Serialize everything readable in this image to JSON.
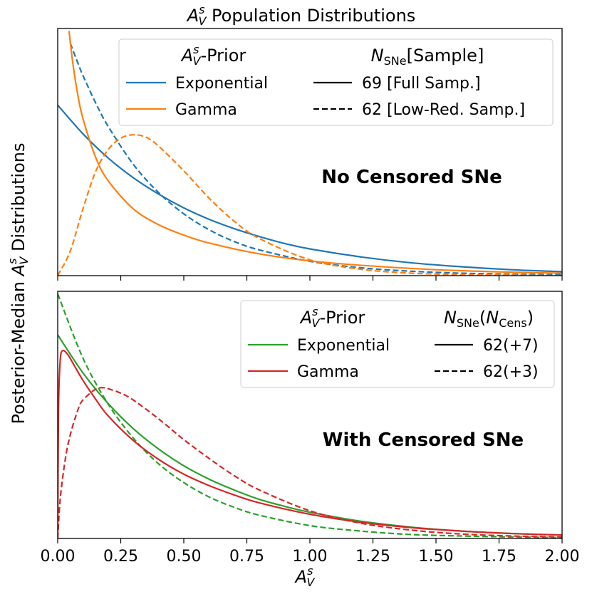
{
  "figure": {
    "title_base": "A",
    "title_sup": "s",
    "title_sub": "V",
    "title_rest": " Population Distributions",
    "ylabel_pre": "Posterior-Median ",
    "ylabel_base": "A",
    "ylabel_sup": "s",
    "ylabel_sub": "V",
    "ylabel_post": " Distributions",
    "xlabel_base": "A",
    "xlabel_sup": "s",
    "xlabel_sub": "V"
  },
  "colors": {
    "exponential_top": "#1f77b4",
    "gamma_top": "#ff7f0e",
    "exponential_bottom": "#2ca02c",
    "gamma_bottom": "#d62728"
  },
  "chart_data": [
    {
      "type": "line",
      "panel": "top",
      "annotation": "No Censored SNe",
      "xlim": [
        0.0,
        2.0
      ],
      "ylim": [
        0,
        5.0
      ],
      "ylabel_shows_ticks": false,
      "legend": {
        "placement": "top-right",
        "prior_header_base": "A",
        "prior_header_sup": "s",
        "prior_header_sub": "V",
        "prior_header_rest": "-Prior",
        "sample_header_base": "N",
        "sample_header_sub": "SNe",
        "sample_header_rest": "[Sample]",
        "priors": [
          {
            "label": "Exponential",
            "color": "#1f77b4"
          },
          {
            "label": "Gamma",
            "color": "#ff7f0e"
          }
        ],
        "samples": [
          {
            "label": "69 [Full Samp.]",
            "style": "solid"
          },
          {
            "label": "62 [Low-Red. Samp.]",
            "style": "dashed"
          }
        ]
      },
      "series": [
        {
          "name": "Exponential",
          "sample": "69 [Full Samp.]",
          "color": "#1f77b4",
          "style": "solid",
          "x": [
            0.0,
            0.1,
            0.2,
            0.3,
            0.4,
            0.5,
            0.6,
            0.7,
            0.8,
            0.9,
            1.0,
            1.2,
            1.4,
            1.6,
            1.8,
            2.0
          ],
          "y": [
            3.45,
            2.87,
            2.38,
            1.98,
            1.65,
            1.37,
            1.14,
            0.95,
            0.79,
            0.65,
            0.54,
            0.38,
            0.26,
            0.18,
            0.12,
            0.08
          ]
        },
        {
          "name": "Exponential",
          "sample": "62 [Low-Red. Samp.]",
          "color": "#1f77b4",
          "style": "dashed",
          "x": [
            0.05,
            0.08,
            0.1,
            0.15,
            0.2,
            0.3,
            0.4,
            0.5,
            0.6,
            0.7,
            0.8,
            1.0,
            1.2,
            1.4,
            1.6,
            1.8,
            2.0
          ],
          "y": [
            4.7,
            4.3,
            4.05,
            3.5,
            3.02,
            2.25,
            1.68,
            1.25,
            0.93,
            0.69,
            0.52,
            0.29,
            0.16,
            0.09,
            0.05,
            0.03,
            0.02
          ]
        },
        {
          "name": "Gamma",
          "sample": "69 [Full Samp.]",
          "color": "#ff7f0e",
          "style": "solid",
          "x": [
            0.045,
            0.06,
            0.08,
            0.1,
            0.15,
            0.2,
            0.3,
            0.4,
            0.5,
            0.6,
            0.8,
            1.0,
            1.2,
            1.5,
            1.8,
            2.0
          ],
          "y": [
            4.95,
            4.3,
            3.65,
            3.18,
            2.4,
            1.92,
            1.35,
            1.03,
            0.82,
            0.66,
            0.44,
            0.3,
            0.21,
            0.12,
            0.07,
            0.05
          ]
        },
        {
          "name": "Gamma",
          "sample": "62 [Low-Red. Samp.]",
          "color": "#ff7f0e",
          "style": "dashed",
          "x": [
            0.0,
            0.05,
            0.1,
            0.15,
            0.2,
            0.25,
            0.3,
            0.35,
            0.4,
            0.5,
            0.6,
            0.7,
            0.8,
            1.0,
            1.2,
            1.4,
            1.6,
            1.8,
            2.0
          ],
          "y": [
            0.0,
            0.5,
            1.35,
            2.1,
            2.55,
            2.78,
            2.85,
            2.8,
            2.62,
            2.12,
            1.57,
            1.1,
            0.75,
            0.32,
            0.13,
            0.05,
            0.02,
            0.01,
            0.0
          ]
        }
      ]
    },
    {
      "type": "line",
      "panel": "bottom",
      "annotation": "With Censored SNe",
      "xlim": [
        0.0,
        2.0
      ],
      "ylim": [
        0,
        5.0
      ],
      "xticks": [
        "0.00",
        "0.25",
        "0.50",
        "0.75",
        "1.00",
        "1.25",
        "1.50",
        "1.75",
        "2.00"
      ],
      "xtick_values": [
        0.0,
        0.25,
        0.5,
        0.75,
        1.0,
        1.25,
        1.5,
        1.75,
        2.0
      ],
      "legend": {
        "placement": "top-right",
        "prior_header_base": "A",
        "prior_header_sup": "s",
        "prior_header_sub": "V",
        "prior_header_rest": "-Prior",
        "sample_header_base": "N",
        "sample_header_sub": "SNe",
        "sample_header_mid": "(",
        "sample_header_base2": "N",
        "sample_header_sub2": "Cens",
        "sample_header_end": ")",
        "priors": [
          {
            "label": "Exponential",
            "color": "#2ca02c"
          },
          {
            "label": "Gamma",
            "color": "#d62728"
          }
        ],
        "samples": [
          {
            "label": "62(+7)",
            "style": "solid"
          },
          {
            "label": "62(+3)",
            "style": "dashed"
          }
        ]
      },
      "series": [
        {
          "name": "Exponential",
          "sample": "62(+7)",
          "color": "#2ca02c",
          "style": "solid",
          "x": [
            0.0,
            0.1,
            0.2,
            0.3,
            0.4,
            0.5,
            0.6,
            0.7,
            0.8,
            0.9,
            1.0,
            1.2,
            1.4,
            1.6,
            1.8,
            2.0
          ],
          "y": [
            4.12,
            3.35,
            2.73,
            2.22,
            1.81,
            1.47,
            1.2,
            0.98,
            0.79,
            0.65,
            0.53,
            0.35,
            0.23,
            0.15,
            0.1,
            0.07
          ]
        },
        {
          "name": "Exponential",
          "sample": "62(+3)",
          "color": "#2ca02c",
          "style": "dashed",
          "x": [
            0.0,
            0.1,
            0.2,
            0.3,
            0.4,
            0.5,
            0.6,
            0.7,
            0.8,
            1.0,
            1.2,
            1.4,
            1.6,
            1.8,
            2.0
          ],
          "y": [
            4.95,
            3.65,
            2.72,
            2.03,
            1.51,
            1.13,
            0.84,
            0.63,
            0.47,
            0.26,
            0.15,
            0.08,
            0.05,
            0.03,
            0.02
          ]
        },
        {
          "name": "Gamma",
          "sample": "62(+7)",
          "color": "#d62728",
          "style": "solid",
          "x": [
            0.0,
            0.003,
            0.01,
            0.02,
            0.04,
            0.06,
            0.1,
            0.15,
            0.2,
            0.3,
            0.4,
            0.5,
            0.6,
            0.7,
            0.8,
            1.0,
            1.2,
            1.4,
            1.6,
            1.8,
            2.0
          ],
          "y": [
            0.0,
            2.6,
            3.6,
            3.8,
            3.72,
            3.55,
            3.2,
            2.82,
            2.48,
            1.98,
            1.6,
            1.3,
            1.07,
            0.88,
            0.72,
            0.49,
            0.33,
            0.22,
            0.15,
            0.1,
            0.07
          ]
        },
        {
          "name": "Gamma",
          "sample": "62(+3)",
          "color": "#d62728",
          "style": "dashed",
          "x": [
            0.0,
            0.01,
            0.03,
            0.05,
            0.08,
            0.1,
            0.15,
            0.18,
            0.2,
            0.25,
            0.3,
            0.4,
            0.5,
            0.6,
            0.7,
            0.8,
            1.0,
            1.2,
            1.4,
            1.6,
            1.8,
            2.0
          ],
          "y": [
            0.0,
            0.8,
            1.6,
            2.1,
            2.6,
            2.8,
            3.02,
            3.05,
            3.03,
            2.94,
            2.8,
            2.42,
            2.0,
            1.62,
            1.27,
            0.98,
            0.56,
            0.31,
            0.17,
            0.09,
            0.05,
            0.03
          ]
        }
      ]
    }
  ]
}
